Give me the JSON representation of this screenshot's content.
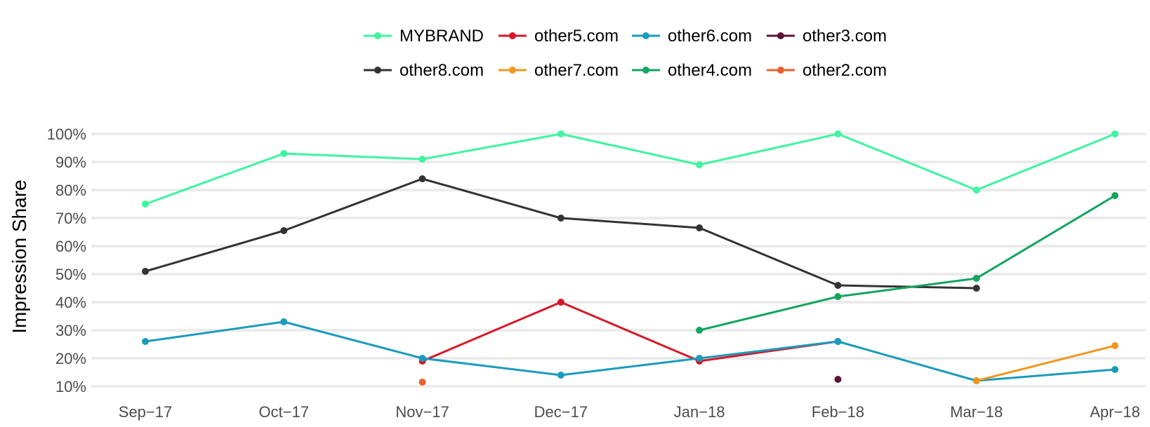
{
  "chart_data": {
    "type": "line",
    "title": "",
    "xlabel": "",
    "ylabel": "Impression Share",
    "ylim": [
      0.08,
      1.0
    ],
    "y_ticks": [
      "100%",
      "90%",
      "80%",
      "70%",
      "60%",
      "50%",
      "40%",
      "30%",
      "20%",
      "10%"
    ],
    "y_tick_values": [
      1.0,
      0.9,
      0.8,
      0.7,
      0.6,
      0.5,
      0.4,
      0.3,
      0.2,
      0.1
    ],
    "categories": [
      "Sep−17",
      "Oct−17",
      "Nov−17",
      "Dec−17",
      "Jan−18",
      "Feb−18",
      "Mar−18",
      "Apr−18"
    ],
    "grid": "horizontal",
    "legend_position": "top",
    "series": [
      {
        "name": "MYBRAND",
        "color": "#3ef5a0",
        "values": [
          0.75,
          0.93,
          0.91,
          1.0,
          0.89,
          1.0,
          0.8,
          1.0
        ]
      },
      {
        "name": "other5.com",
        "color": "#d7182a",
        "values": [
          null,
          null,
          0.19,
          0.4,
          0.19,
          0.26,
          null,
          null
        ]
      },
      {
        "name": "other6.com",
        "color": "#1a9bbc",
        "values": [
          0.26,
          0.33,
          0.2,
          0.14,
          0.2,
          0.26,
          0.12,
          0.16
        ]
      },
      {
        "name": "other3.com",
        "color": "#5e1435",
        "values": [
          null,
          null,
          null,
          null,
          null,
          0.125,
          null,
          null
        ]
      },
      {
        "name": "other8.com",
        "color": "#333333",
        "values": [
          0.51,
          0.655,
          0.84,
          0.7,
          0.665,
          0.46,
          0.45,
          null
        ]
      },
      {
        "name": "other7.com",
        "color": "#f0961e",
        "values": [
          null,
          null,
          null,
          null,
          null,
          null,
          0.12,
          0.245
        ]
      },
      {
        "name": "other4.com",
        "color": "#13a55e",
        "values": [
          null,
          null,
          null,
          null,
          0.3,
          0.42,
          0.485,
          0.78
        ]
      },
      {
        "name": "other2.com",
        "color": "#e8602c",
        "values": [
          null,
          null,
          0.115,
          null,
          null,
          null,
          null,
          null
        ]
      }
    ]
  }
}
